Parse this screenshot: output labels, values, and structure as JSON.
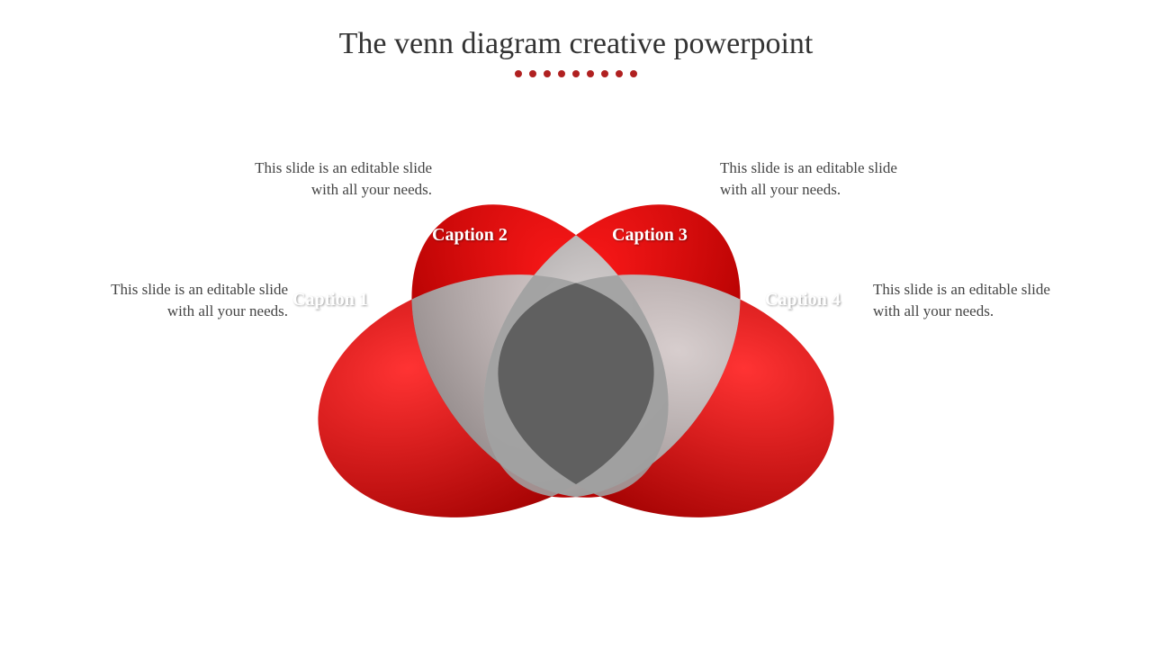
{
  "title": "The venn diagram creative powerpoint",
  "title_color": "#333333",
  "title_fontsize": 34,
  "dots": {
    "count": 9,
    "color": "#b02020",
    "size": 8
  },
  "captions": [
    {
      "label": "Caption 1",
      "desc": "This slide is an editable slide with all your needs."
    },
    {
      "label": "Caption 2",
      "desc": "This slide is an editable slide with all your needs."
    },
    {
      "label": "Caption 3",
      "desc": "This slide is an editable slide with all your needs."
    },
    {
      "label": "Caption 4",
      "desc": "This slide is an editable slide with all your needs."
    }
  ],
  "diagram": {
    "type": "venn-petal",
    "petal_count": 4,
    "colors": {
      "petal_light": "#ff1a1a",
      "petal_dark": "#a00000",
      "overlap_light": "#d0d0d0",
      "overlap_mid": "#a8a8a8",
      "overlap_dark": "#808080",
      "center": "#606060"
    },
    "label_color": "#ffffff",
    "label_fontsize": 20,
    "background": "#ffffff"
  }
}
